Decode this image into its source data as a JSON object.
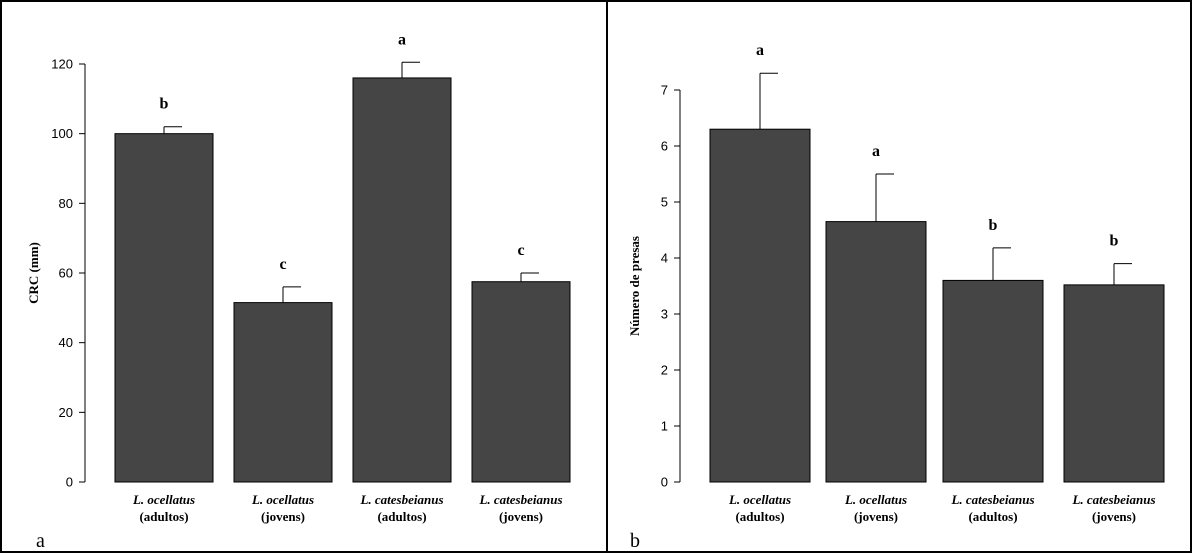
{
  "colors": {
    "bar_fill": "#454545",
    "frame": "#000000"
  },
  "chart_data": [
    {
      "type": "bar",
      "panel_label": "a",
      "xlabel": "",
      "ylabel": "CRC (mm)",
      "ylim": [
        0,
        120
      ],
      "yticks": [
        0,
        20,
        40,
        60,
        80,
        100,
        120
      ],
      "categories": [
        {
          "name": "L. ocellatus",
          "group": "(adultos)"
        },
        {
          "name": "L. ocellatus",
          "group": "(jovens)"
        },
        {
          "name": "L. catesbeianus",
          "group": "(adultos)"
        },
        {
          "name": "L. catesbeianus",
          "group": "(jovens)"
        }
      ],
      "values": [
        100,
        51.5,
        116,
        57.5
      ],
      "errors": [
        2,
        4.5,
        4.5,
        2.5
      ],
      "significance": [
        "b",
        "c",
        "a",
        "c"
      ],
      "grid": false
    },
    {
      "type": "bar",
      "panel_label": "b",
      "xlabel": "",
      "ylabel": "Número de presas",
      "ylim": [
        0,
        7
      ],
      "yticks": [
        0,
        1,
        2,
        3,
        4,
        5,
        6,
        7
      ],
      "categories": [
        {
          "name": "L. ocellatus",
          "group": "(adultos)"
        },
        {
          "name": "L. ocellatus",
          "group": "(jovens)"
        },
        {
          "name": "L. catesbeianus",
          "group": "(adultos)"
        },
        {
          "name": "L. catesbeianus",
          "group": "(jovens)"
        }
      ],
      "values": [
        6.3,
        4.65,
        3.6,
        3.52
      ],
      "errors": [
        1.0,
        0.85,
        0.58,
        0.38
      ],
      "significance": [
        "a",
        "a",
        "b",
        "b"
      ],
      "grid": false
    }
  ]
}
